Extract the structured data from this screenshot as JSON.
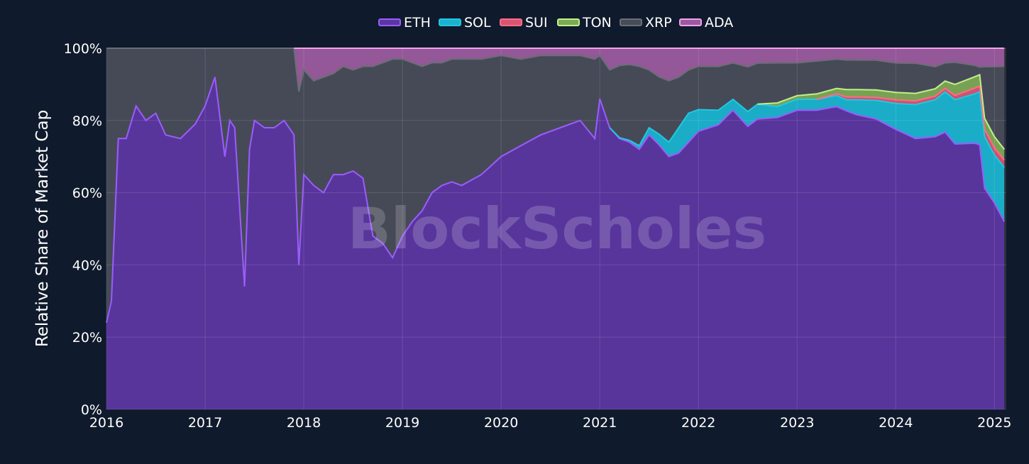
{
  "chart_data": {
    "type": "area",
    "stacked": true,
    "normalized": true,
    "title": "",
    "xlabel": "",
    "ylabel": "Relative Share of Market Cap",
    "watermark": "BlockScholes",
    "ylim": [
      0,
      100
    ],
    "xlim": [
      2016.0,
      2025.12
    ],
    "legend_position": "top-center",
    "grid": true,
    "x_ticks": [
      2016,
      2017,
      2018,
      2019,
      2020,
      2021,
      2022,
      2023,
      2024,
      2025
    ],
    "x_tick_labels": [
      "2016",
      "2017",
      "2018",
      "2019",
      "2020",
      "2021",
      "2022",
      "2023",
      "2024",
      "2025"
    ],
    "y_ticks": [
      0,
      20,
      40,
      60,
      80,
      100
    ],
    "y_tick_labels": [
      "0%",
      "20%",
      "40%",
      "60%",
      "80%",
      "100%"
    ],
    "colors": {
      "ETH": "#5b36a0",
      "SOL": "#1ab3cf",
      "SUI": "#d9546f",
      "TON": "#7da854",
      "XRP": "#484c58",
      "ADA": "#9a5a9c",
      "ETH_line": "#9b5cff",
      "SOL_line": "#22c7e0",
      "SUI_line": "#ff6b88",
      "TON_line": "#bff08a",
      "XRP_line": "#6b6e76",
      "ADA_line": "#f2a0ee"
    },
    "x": [
      2016.0,
      2016.05,
      2016.12,
      2016.2,
      2016.3,
      2016.4,
      2016.5,
      2016.6,
      2016.75,
      2016.9,
      2017.0,
      2017.1,
      2017.2,
      2017.25,
      2017.3,
      2017.4,
      2017.45,
      2017.5,
      2017.6,
      2017.7,
      2017.8,
      2017.9,
      2017.95,
      2018.0,
      2018.1,
      2018.2,
      2018.3,
      2018.4,
      2018.5,
      2018.6,
      2018.7,
      2018.8,
      2018.9,
      2019.0,
      2019.1,
      2019.2,
      2019.3,
      2019.4,
      2019.5,
      2019.6,
      2019.8,
      2020.0,
      2020.2,
      2020.4,
      2020.6,
      2020.8,
      2020.95,
      2021.0,
      2021.1,
      2021.2,
      2021.3,
      2021.4,
      2021.5,
      2021.6,
      2021.7,
      2021.8,
      2021.9,
      2022.0,
      2022.2,
      2022.35,
      2022.5,
      2022.6,
      2022.8,
      2023.0,
      2023.2,
      2023.4,
      2023.5,
      2023.6,
      2023.8,
      2024.0,
      2024.2,
      2024.4,
      2024.5,
      2024.6,
      2024.8,
      2024.85,
      2024.9,
      2025.0,
      2025.1
    ],
    "series": [
      {
        "name": "ETH",
        "values": [
          24,
          30,
          75,
          75,
          84,
          80,
          82,
          76,
          75,
          79,
          84,
          92,
          70,
          80,
          78,
          34,
          72,
          80,
          78,
          78,
          80,
          76,
          40,
          65,
          62,
          60,
          65,
          65,
          66,
          64,
          48,
          46,
          42,
          48,
          52,
          55,
          60,
          62,
          63,
          62,
          65,
          70,
          73,
          76,
          78,
          80,
          75,
          86,
          78,
          75,
          74,
          72,
          76,
          74,
          70,
          71,
          74,
          77,
          78,
          82,
          76,
          78,
          80,
          82,
          82,
          83,
          81,
          80,
          78,
          76,
          72,
          74,
          76,
          72,
          70,
          70,
          60,
          56,
          52
        ]
      },
      {
        "name": "SOL",
        "values": [
          0,
          0,
          0,
          0,
          0,
          0,
          0,
          0,
          0,
          0,
          0,
          0,
          0,
          0,
          0,
          0,
          0,
          0,
          0,
          0,
          0,
          0,
          0,
          0,
          0,
          0,
          0,
          0,
          0,
          0,
          0,
          0,
          0,
          0,
          0,
          0,
          0,
          0,
          0,
          0,
          0,
          0,
          0,
          0,
          0,
          0,
          0,
          0,
          0,
          0.2,
          0.5,
          1,
          2,
          3,
          4,
          7,
          8,
          6,
          4,
          3,
          4,
          4,
          3,
          3,
          3,
          3,
          3,
          4,
          5,
          7,
          9,
          10,
          11,
          12,
          13,
          14,
          14,
          13,
          15
        ]
      },
      {
        "name": "SUI",
        "values": [
          0,
          0,
          0,
          0,
          0,
          0,
          0,
          0,
          0,
          0,
          0,
          0,
          0,
          0,
          0,
          0,
          0,
          0,
          0,
          0,
          0,
          0,
          0,
          0,
          0,
          0,
          0,
          0,
          0,
          0,
          0,
          0,
          0,
          0,
          0,
          0,
          0,
          0,
          0,
          0,
          0,
          0,
          0,
          0,
          0,
          0,
          0,
          0,
          0,
          0,
          0,
          0,
          0,
          0,
          0,
          0,
          0,
          0,
          0,
          0,
          0,
          0,
          0,
          0,
          0,
          0.5,
          0.8,
          0.8,
          0.8,
          1,
          1,
          1,
          1,
          1.2,
          1.5,
          1.5,
          2,
          2,
          2
        ]
      },
      {
        "name": "TON",
        "values": [
          0,
          0,
          0,
          0,
          0,
          0,
          0,
          0,
          0,
          0,
          0,
          0,
          0,
          0,
          0,
          0,
          0,
          0,
          0,
          0,
          0,
          0,
          0,
          0,
          0,
          0,
          0,
          0,
          0,
          0,
          0,
          0,
          0,
          0,
          0,
          0,
          0,
          0,
          0,
          0,
          0,
          0,
          0,
          0,
          0,
          0,
          0,
          0,
          0,
          0,
          0,
          0,
          0,
          0,
          0,
          0,
          0,
          0,
          0,
          0,
          0,
          0,
          1,
          1,
          1.5,
          1.5,
          2,
          2,
          2,
          2,
          2,
          2,
          2,
          3,
          3,
          3,
          3,
          3,
          3
        ]
      },
      {
        "name": "XRP",
        "values": [
          76,
          70,
          25,
          25,
          16,
          20,
          18,
          24,
          25,
          21,
          16,
          8,
          30,
          20,
          22,
          66,
          28,
          20,
          22,
          22,
          20,
          24,
          48,
          29,
          29,
          32,
          28,
          30,
          28,
          31,
          47,
          50,
          55,
          49,
          44,
          40,
          36,
          34,
          34,
          35,
          32,
          28,
          24,
          22,
          20,
          18,
          22,
          12,
          16,
          20,
          21,
          22,
          16,
          16,
          17,
          14,
          12,
          12,
          12,
          10,
          12,
          11,
          11,
          9,
          9,
          8,
          8,
          8,
          8,
          8,
          8,
          6,
          5,
          6,
          3,
          2,
          14,
          19,
          23
        ]
      },
      {
        "name": "ADA",
        "values": [
          0,
          0,
          0,
          0,
          0,
          0,
          0,
          0,
          0,
          0,
          0,
          0,
          0,
          0,
          0,
          0,
          0,
          0,
          0,
          0,
          0,
          0,
          12,
          6,
          9,
          8,
          7,
          5,
          6,
          5,
          5,
          4,
          3,
          3,
          4,
          5,
          4,
          4,
          3,
          3,
          3,
          2,
          3,
          2,
          2,
          2,
          3,
          2,
          6,
          4.8,
          4.5,
          5,
          6,
          8,
          9,
          8,
          6,
          5,
          5,
          4,
          5,
          4,
          4,
          4,
          3.5,
          3,
          3.2,
          3.2,
          3.2,
          4,
          4,
          5,
          4,
          3.8,
          4.5,
          5,
          5,
          5,
          5
        ]
      }
    ]
  }
}
